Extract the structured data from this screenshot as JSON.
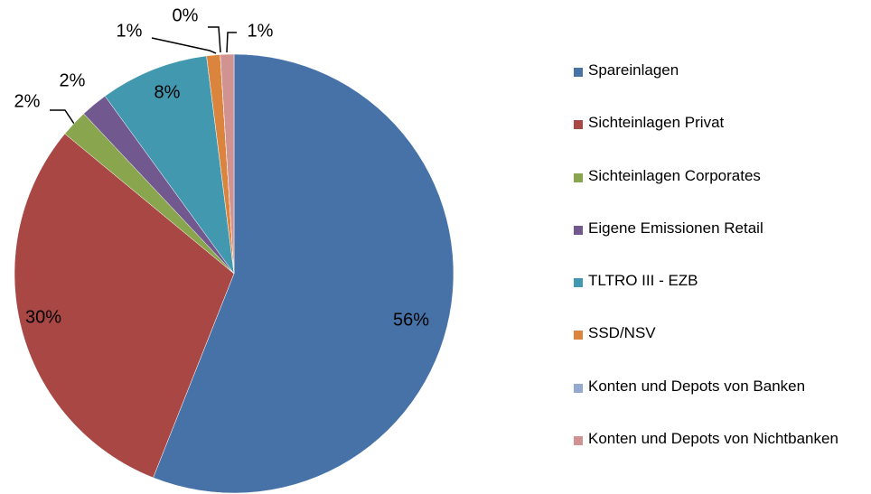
{
  "chart_data": {
    "type": "pie",
    "categories": [
      "Spareinlagen",
      "Sichteinlagen Privat",
      "Sichteinlagen Corporates",
      "Eigene Emissionen Retail",
      "TLTRO III - EZB",
      "SSD/NSV",
      "Konten und Depots von Banken",
      "Konten und Depots von Nichtbanken"
    ],
    "values": [
      56,
      30,
      2,
      2,
      8,
      1,
      0,
      1
    ],
    "value_labels": [
      "56%",
      "30%",
      "2%",
      "2%",
      "8%",
      "1%",
      "0%",
      "1%"
    ],
    "colors": [
      "#4672a8",
      "#a84744",
      "#89a54e",
      "#71588f",
      "#4298af",
      "#db843d",
      "#93a9cf",
      "#d19392"
    ]
  }
}
